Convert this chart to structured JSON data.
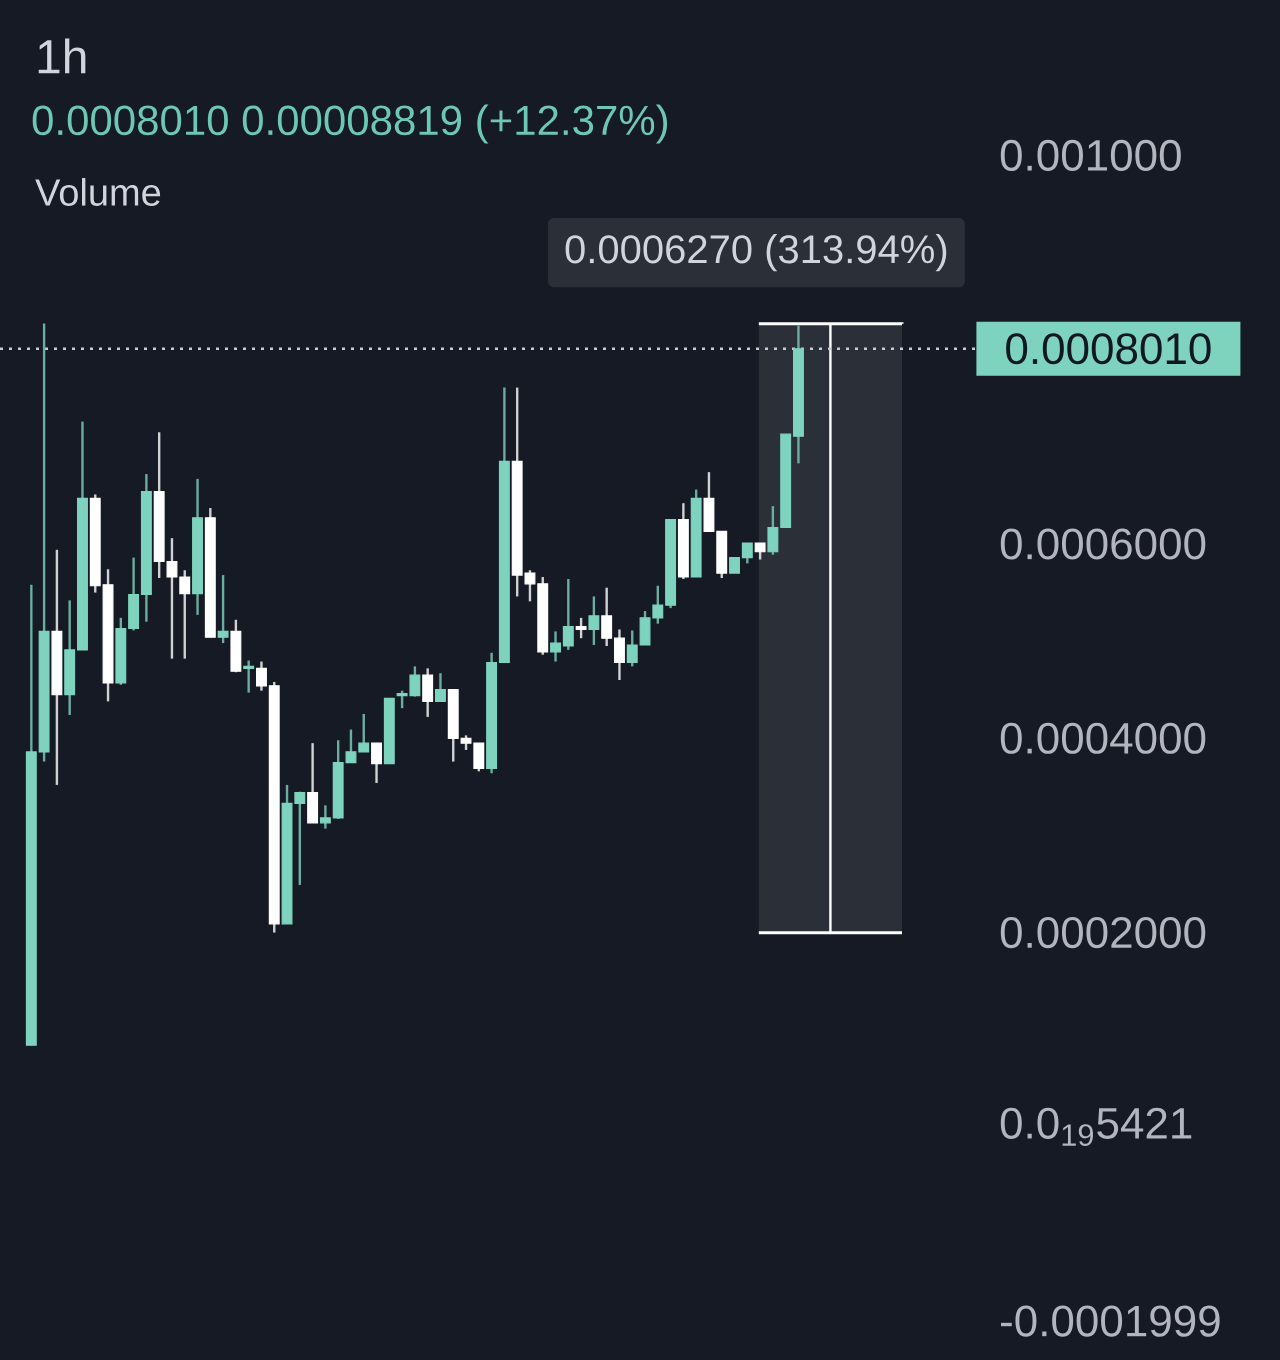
{
  "chart_data": {
    "type": "candlestick",
    "title": "1h",
    "subtitle": "0.0008010  0.00008819 (+12.37%)",
    "annotations": [
      "Volume"
    ],
    "categories": [
      null,
      null,
      null,
      null,
      null,
      null,
      null,
      null,
      null,
      null,
      null,
      null,
      null,
      null,
      null,
      null,
      null,
      null,
      null,
      null,
      null,
      null,
      null,
      null,
      null,
      null,
      null,
      null,
      null,
      null,
      null,
      null,
      null,
      null,
      null,
      null,
      null,
      null,
      null,
      null,
      null,
      null,
      null,
      null,
      null,
      null,
      null,
      null,
      null,
      null,
      null,
      null,
      null,
      null,
      null,
      null,
      null,
      null,
      null,
      null,
      null
    ],
    "ohlc": [
      [
        8.4e-05,
        0.000558,
        8.4e-05,
        0.000386
      ],
      [
        0.000386,
        0.000827,
        0.000376,
        0.00051
      ],
      [
        0.00051,
        0.000594,
        0.000352,
        0.000445
      ],
      [
        0.000445,
        0.000542,
        0.000424,
        0.000491
      ],
      [
        0.000491,
        0.000726,
        0.000491,
        0.000647
      ],
      [
        0.000647,
        0.000651,
        0.00055,
        0.000557
      ],
      [
        0.000558,
        0.000574,
        0.000438,
        0.000457
      ],
      [
        0.000457,
        0.000524,
        0.000455,
        0.000513
      ],
      [
        0.000513,
        0.000586,
        0.000511,
        0.000548
      ],
      [
        0.000548,
        0.000672,
        0.00052,
        0.000654
      ],
      [
        0.000654,
        0.000715,
        0.000565,
        0.000582
      ],
      [
        0.000582,
        0.000606,
        0.000482,
        0.000566
      ],
      [
        0.000566,
        0.000573,
        0.000482,
        0.000549
      ],
      [
        0.000549,
        0.000667,
        0.000527,
        0.000627
      ],
      [
        0.000627,
        0.000637,
        0.000504,
        0.000504
      ],
      [
        0.000504,
        0.000568,
        0.000498,
        0.00051
      ],
      [
        0.00051,
        0.000522,
        0.000468,
        0.000469
      ],
      [
        0.000472,
        0.00048,
        0.000447,
        0.000474
      ],
      [
        0.000472,
        0.000479,
        0.000449,
        0.000454
      ],
      [
        0.000454,
        0.000458,
        0.0002,
        0.000209
      ],
      [
        0.000209,
        0.000352,
        0.000209,
        0.000333
      ],
      [
        0.000333,
        0.000345,
        0.000249,
        0.000344
      ],
      [
        0.000344,
        0.000395,
        0.000313,
        0.000313
      ],
      [
        0.000313,
        0.000331,
        0.000307,
        0.000318
      ],
      [
        0.000318,
        0.000398,
        0.000317,
        0.000375
      ],
      [
        0.000375,
        0.000409,
        0.000375,
        0.000386
      ],
      [
        0.000386,
        0.000425,
        0.000386,
        0.000395
      ],
      [
        0.000395,
        0.000395,
        0.000354,
        0.000374
      ],
      [
        0.000374,
        0.000441,
        0.000374,
        0.000441
      ],
      [
        0.000444,
        0.000449,
        0.000431,
        0.000446
      ],
      [
        0.000444,
        0.000474,
        0.000443,
        0.000465
      ],
      [
        0.000465,
        0.000472,
        0.000422,
        0.000438
      ],
      [
        0.000438,
        0.000467,
        0.000438,
        0.00045
      ],
      [
        0.00045,
        0.00045,
        0.000376,
        0.0004
      ],
      [
        0.0004,
        0.000403,
        0.000388,
        0.000395
      ],
      [
        0.000395,
        0.000395,
        0.000366,
        0.000369
      ],
      [
        0.000369,
        0.000488,
        0.000364,
        0.000478
      ],
      [
        0.000478,
        0.000761,
        0.000478,
        0.000685
      ],
      [
        0.000685,
        0.000761,
        0.000546,
        0.000568
      ],
      [
        0.00057,
        0.000573,
        0.000541,
        0.000559
      ],
      [
        0.000559,
        0.000566,
        0.000486,
        0.000489
      ],
      [
        0.000489,
        0.00051,
        0.000479,
        0.000498
      ],
      [
        0.000495,
        0.000564,
        0.000491,
        0.000515
      ],
      [
        0.000515,
        0.000524,
        0.000503,
        0.000512
      ],
      [
        0.000512,
        0.000546,
        0.000496,
        0.000526
      ],
      [
        0.000526,
        0.000555,
        0.000495,
        0.000503
      ],
      [
        0.000503,
        0.000512,
        0.00046,
        0.000478
      ],
      [
        0.000478,
        0.000511,
        0.000474,
        0.000496
      ],
      [
        0.000496,
        0.000531,
        0.000496,
        0.000524
      ],
      [
        0.000524,
        0.000557,
        0.000518,
        0.000537
      ],
      [
        0.000537,
        0.000625,
        0.000534,
        0.000625
      ],
      [
        0.000625,
        0.000642,
        0.000564,
        0.000566
      ],
      [
        0.000566,
        0.000656,
        0.000566,
        0.000647
      ],
      [
        0.000647,
        0.000674,
        0.000613,
        0.000613
      ],
      [
        0.000613,
        0.000613,
        0.000565,
        0.00057
      ],
      [
        0.00057,
        0.000586,
        0.00057,
        0.000586
      ],
      [
        0.000586,
        0.000601,
        0.00058,
        0.000601
      ],
      [
        0.000601,
        0.000601,
        0.000584,
        0.000592
      ],
      [
        0.000592,
        0.000639,
        0.000589,
        0.000617
      ],
      [
        0.000617,
        0.000713,
        0.000617,
        0.000713
      ],
      [
        0.000711,
        0.000825,
        0.000683,
        0.000801
      ]
    ],
    "colors": [
      "#7ed3be",
      "#7ed3be",
      "#ffffff",
      "#7ed3be",
      "#7ed3be",
      "#ffffff",
      "#ffffff",
      "#7ed3be",
      "#7ed3be",
      "#7ed3be",
      "#ffffff",
      "#ffffff",
      "#ffffff",
      "#7ed3be",
      "#ffffff",
      "#7ed3be",
      "#ffffff",
      "#7ed3be",
      "#ffffff",
      "#ffffff",
      "#7ed3be",
      "#7ed3be",
      "#ffffff",
      "#7ed3be",
      "#7ed3be",
      "#7ed3be",
      "#7ed3be",
      "#ffffff",
      "#7ed3be",
      "#7ed3be",
      "#7ed3be",
      "#ffffff",
      "#7ed3be",
      "#ffffff",
      "#ffffff",
      "#ffffff",
      "#7ed3be",
      "#7ed3be",
      "#ffffff",
      "#ffffff",
      "#ffffff",
      "#7ed3be",
      "#7ed3be",
      "#ffffff",
      "#7ed3be",
      "#ffffff",
      "#ffffff",
      "#7ed3be",
      "#7ed3be",
      "#7ed3be",
      "#7ed3be",
      "#ffffff",
      "#7ed3be",
      "#ffffff",
      "#ffffff",
      "#7ed3be",
      "#7ed3be",
      "#ffffff",
      "#7ed3be",
      "#7ed3be",
      "#7ed3be"
    ],
    "ylim": [
      -0.00024,
      0.00116
    ],
    "yticks": [
      {
        "value": -0.0001999,
        "label": "-0.0001999"
      },
      {
        "value": 0,
        "label": "0.0$_{19}$5421"
      },
      {
        "value": 0.0002,
        "label": "0.0002000"
      },
      {
        "value": 0.0004,
        "label": "0.0004000"
      },
      {
        "value": 0.0006,
        "label": "0.0006000"
      },
      {
        "value": 0.001,
        "label": "0.001000"
      }
    ],
    "tick_labels": "y",
    "ref_lines": [
      {
        "axis": "y",
        "value": 0.000801,
        "label": "0.0008010",
        "color": "#c9ccd4",
        "line_style": "dotted"
      }
    ],
    "bands": [
      {
        "axis": "y",
        "from": 0.0001997,
        "to": 0.0008267,
        "label": "0.0006270 (313.94%)",
        "color": "#2b2f38"
      }
    ]
  }
}
